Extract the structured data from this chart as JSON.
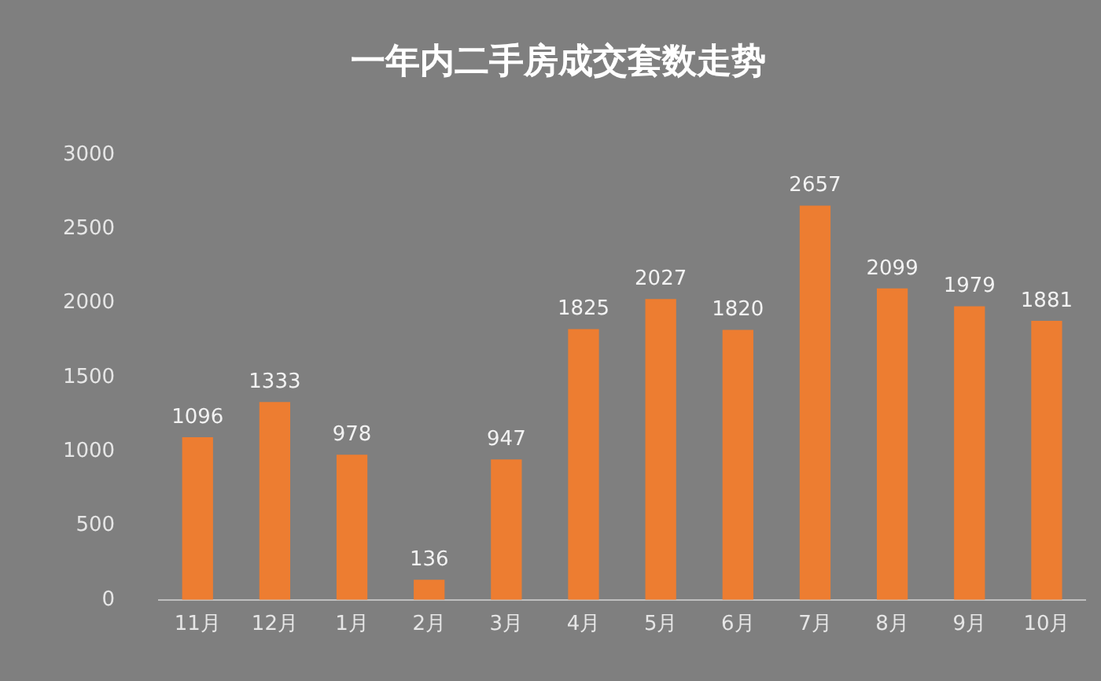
{
  "chart_data": {
    "type": "bar",
    "title": "一年内二手房成交套数走势",
    "categories": [
      "11月",
      "12月",
      "1月",
      "2月",
      "3月",
      "4月",
      "5月",
      "6月",
      "7月",
      "8月",
      "9月",
      "10月"
    ],
    "values": [
      1096,
      1333,
      978,
      136,
      947,
      1825,
      2027,
      1820,
      2657,
      2099,
      1979,
      1881
    ],
    "color": "#ed7d31",
    "ylim": [
      0,
      3000
    ],
    "yticks": [
      0,
      500,
      1000,
      1500,
      2000,
      2500,
      3000
    ],
    "grid": false,
    "legend": false,
    "data_labels": true
  }
}
